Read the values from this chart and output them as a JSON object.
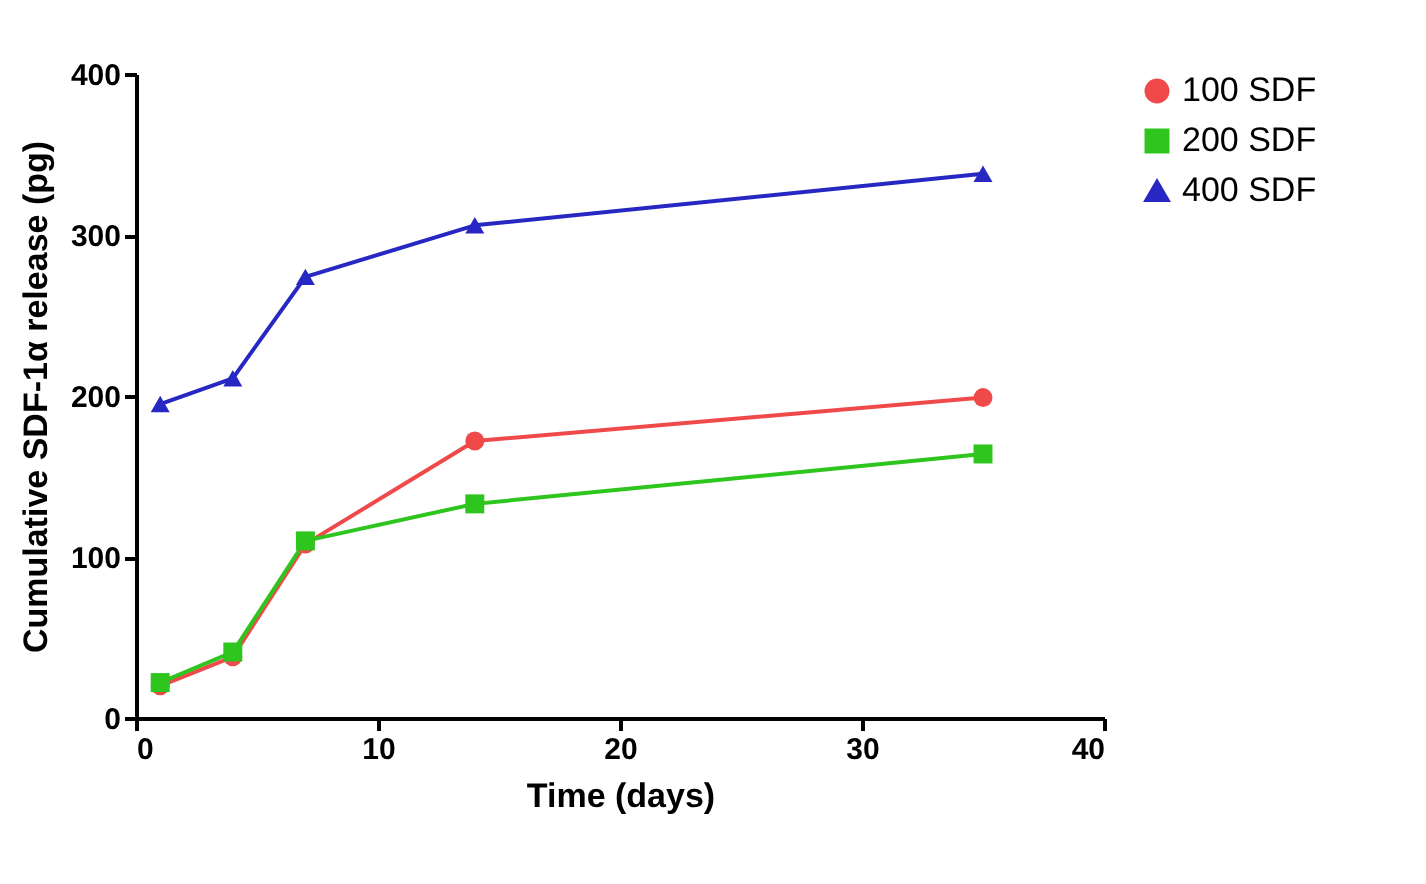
{
  "chart_data": {
    "type": "line",
    "xlabel": "Time (days)",
    "ylabel": "Cumulative SDF-1α release (pg)",
    "x": [
      1,
      4,
      7,
      14,
      35
    ],
    "xlim": [
      0,
      40
    ],
    "xticks": [
      0,
      10,
      20,
      30,
      40
    ],
    "ylim": [
      0,
      400
    ],
    "yticks": [
      0,
      100,
      200,
      300,
      400
    ],
    "legend": "right",
    "grid": false,
    "series": [
      {
        "name": "100 SDF",
        "color": "#f0494a",
        "marker": "circle",
        "values": [
          20,
          38,
          108,
          172,
          199
        ]
      },
      {
        "name": "200 SDF",
        "color": "#2ec51e",
        "marker": "square",
        "values": [
          22,
          41,
          110,
          133,
          164
        ]
      },
      {
        "name": "400 SDF",
        "color": "#2727c4",
        "marker": "triangle",
        "values": [
          195,
          211,
          274,
          306,
          338
        ]
      }
    ]
  }
}
